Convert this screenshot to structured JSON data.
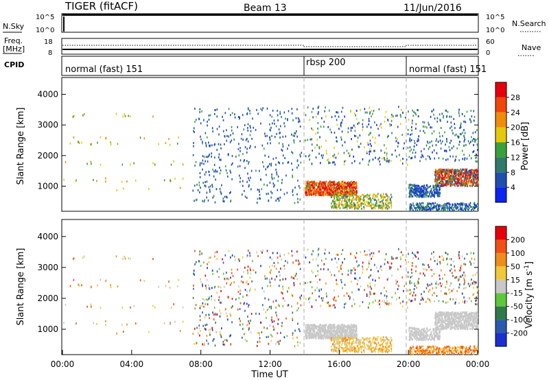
{
  "header": {
    "title": "TIGER (fitACF)",
    "beam": "Beam 13",
    "date": "11/Jun/2016"
  },
  "chart_data": [
    {
      "type": "line",
      "name_label": "N.Sky",
      "right_label": "N.Search",
      "ylabels": [
        "10^5",
        "10^0"
      ],
      "right_ticks": [
        "10^5",
        "10^0"
      ],
      "series": [
        {
          "name": "N.Sky",
          "values": [
            100000,
            100000,
            100000,
            100000,
            100000,
            100000,
            100000
          ]
        }
      ],
      "x": [
        "00:00",
        "04:00",
        "08:00",
        "12:00",
        "16:00",
        "20:00",
        "00:00"
      ]
    },
    {
      "type": "line",
      "label_lines": [
        "Freq.",
        "[MHz]"
      ],
      "right_label": "Nave",
      "left_ticks": [
        18,
        8
      ],
      "right_ticks": [
        60,
        0
      ],
      "series": [
        {
          "name": "Freq",
          "values": [
            10.0,
            10.0,
            10.0,
            10.0,
            10.0,
            10.0,
            10.0
          ]
        },
        {
          "name": "Nave",
          "values": [
            33,
            33,
            33,
            33,
            25,
            33,
            33
          ]
        }
      ]
    },
    {
      "type": "table",
      "label": "CPID",
      "segments": [
        {
          "label": "normal (fast) 151",
          "start_hour": 0,
          "end_hour": 14
        },
        {
          "label": "rbsp 200",
          "start_hour": 14,
          "end_hour": 20
        },
        {
          "label": "normal (fast) 151",
          "start_hour": 20,
          "end_hour": 24
        }
      ]
    },
    {
      "type": "heatmap",
      "ylabel": "Slant Range [km]",
      "ylim": [
        180,
        4550
      ],
      "yticks": [
        1000,
        2000,
        3000,
        4000
      ],
      "xlim": [
        0,
        24
      ],
      "colorbar": {
        "label": "Power [dB]",
        "ticks": [
          "4",
          "8",
          "12",
          "16",
          "20",
          "24",
          "28"
        ],
        "colors": [
          "#0a25f0",
          "#1f4fb0",
          "#2f7a6a",
          "#3aa03a",
          "#e6c80a",
          "#f08c0a",
          "#f0460a",
          "#e6000a"
        ]
      }
    },
    {
      "type": "heatmap",
      "ylabel": "Slant Range [km]",
      "ylim": [
        180,
        4550
      ],
      "yticks": [
        1000,
        2000,
        3000,
        4000
      ],
      "xlim": [
        0,
        24
      ],
      "xlabel": "Time UT",
      "xticks": [
        "00:00",
        "04:00",
        "08:00",
        "12:00",
        "16:00",
        "20:00",
        "00:00"
      ],
      "colorbar": {
        "label": "Velocity [m s^-1]",
        "ticks": [
          "200",
          "100",
          "50",
          "15",
          "-15",
          "-50",
          "-100",
          "-200"
        ],
        "colors": [
          "#1a2fd0",
          "#2a5ab0",
          "#2f7a4a",
          "#5cc83a",
          "#c8c8c8",
          "#f0c83a",
          "#f08c1a",
          "#f05014",
          "#e6000a"
        ]
      }
    }
  ]
}
